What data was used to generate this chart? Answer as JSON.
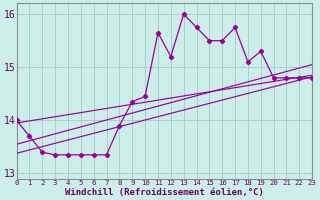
{
  "xlabel": "Windchill (Refroidissement éolien,°C)",
  "x_hours": [
    0,
    1,
    2,
    3,
    4,
    5,
    6,
    7,
    8,
    9,
    10,
    11,
    12,
    13,
    14,
    15,
    16,
    17,
    18,
    19,
    20,
    21,
    22,
    23
  ],
  "windchill": [
    14.0,
    13.7,
    13.4,
    13.35,
    13.35,
    13.35,
    13.35,
    13.35,
    13.9,
    14.35,
    14.45,
    15.65,
    15.2,
    16.0,
    15.75,
    15.5,
    15.5,
    15.75,
    15.1,
    15.3,
    14.8,
    14.8,
    14.8,
    14.8
  ],
  "trend1_x": [
    0,
    23
  ],
  "trend1_y": [
    13.55,
    15.05
  ],
  "trend2_x": [
    0,
    23
  ],
  "trend2_y": [
    13.38,
    14.82
  ],
  "trend3_x": [
    0,
    23
  ],
  "trend3_y": [
    13.95,
    14.85
  ],
  "line_color": "#990099",
  "bg_color": "#cceee8",
  "grid_color": "#aacccc",
  "axis_color": "#888899",
  "text_color": "#660066",
  "xlim": [
    0,
    23
  ],
  "ylim": [
    12.9,
    16.2
  ],
  "yticks": [
    13,
    14,
    15,
    16
  ],
  "xtick_labels": [
    "0",
    "1",
    "2",
    "3",
    "4",
    "5",
    "6",
    "7",
    "8",
    "9",
    "10",
    "11",
    "12",
    "13",
    "14",
    "15",
    "16",
    "17",
    "18",
    "19",
    "20",
    "21",
    "22",
    "23"
  ]
}
